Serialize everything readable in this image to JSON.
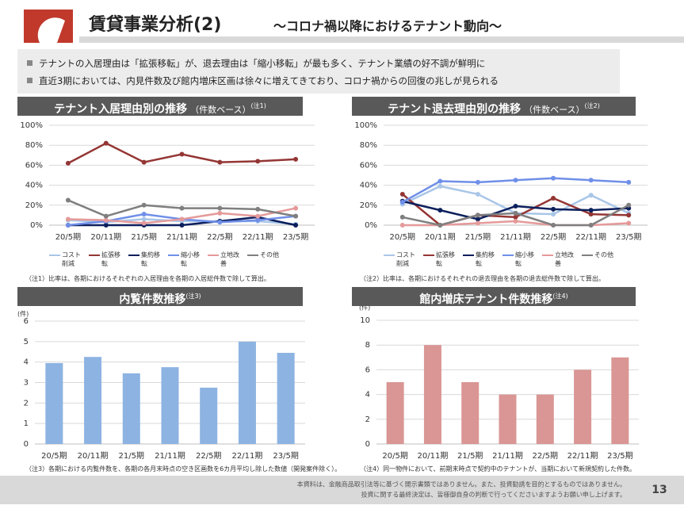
{
  "header": {
    "title": "賃貸事業分析(2)",
    "subtitle": "～コロナ禍以降におけるテナント動向～"
  },
  "bullets": [
    "テナントの入居理由は「拡張移転」が、退去理由は「縮小移転」が最も多く、テナント業績の好不調が鮮明に",
    "直近3期においては、内見件数及び館内増床区画は徐々に増えてきており、コロナ禍からの回復の兆しが見られる"
  ],
  "chart_data": [
    {
      "type": "line",
      "title": "テナント入居理由別の推移",
      "subtitle": "（件数ベース）",
      "note_mark": "(注1)",
      "categories": [
        "20/5期",
        "20/11期",
        "21/5期",
        "21/11期",
        "22/5期",
        "22/11期",
        "23/5期"
      ],
      "series": [
        {
          "name": "コスト削減",
          "color": "#a9c6e8",
          "values": [
            5,
            3,
            6,
            4,
            4,
            4,
            1
          ]
        },
        {
          "name": "拡張移転",
          "color": "#943634",
          "values": [
            62,
            82,
            63,
            71,
            63,
            64,
            66
          ]
        },
        {
          "name": "集約移転",
          "color": "#0b1f5c",
          "values": [
            0,
            0,
            0,
            0,
            4,
            8,
            0
          ]
        },
        {
          "name": "縮小移転",
          "color": "#6f8fe8",
          "values": [
            0,
            4,
            11,
            6,
            3,
            5,
            9
          ]
        },
        {
          "name": "立地改善",
          "color": "#e59a9a",
          "values": [
            6,
            5,
            2,
            6,
            12,
            9,
            17
          ]
        },
        {
          "name": "その他",
          "color": "#7f7f7f",
          "values": [
            25,
            9,
            20,
            17,
            17,
            16,
            9
          ]
        }
      ],
      "ylim": [
        0,
        100
      ],
      "yticks": [
        {
          "value": 0,
          "label": "0%"
        },
        {
          "value": 20,
          "label": "20%"
        },
        {
          "value": 40,
          "label": "40%"
        },
        {
          "value": 60,
          "label": "60%"
        },
        {
          "value": 80,
          "label": "80%"
        },
        {
          "value": 100,
          "label": "100%"
        }
      ],
      "grid": true,
      "footnote": "（注1）比率は、各期におけるそれぞれの入居理由を各期の入居総件数で除して算出。"
    },
    {
      "type": "line",
      "title": "テナント退去理由別の推移",
      "subtitle": "（件数ベース）",
      "note_mark": "(注2)",
      "categories": [
        "20/5期",
        "20/11期",
        "21/5期",
        "21/11期",
        "22/5期",
        "22/11期",
        "23/5期"
      ],
      "series": [
        {
          "name": "コスト削減",
          "color": "#a9c6e8",
          "values": [
            21,
            39,
            31,
            12,
            11,
            30,
            12
          ]
        },
        {
          "name": "拡張移転",
          "color": "#943634",
          "values": [
            31,
            0,
            10,
            8,
            27,
            11,
            10
          ]
        },
        {
          "name": "集約移転",
          "color": "#0b1f5c",
          "values": [
            24,
            15,
            6,
            19,
            16,
            15,
            17
          ]
        },
        {
          "name": "縮小移転",
          "color": "#6f8fe8",
          "values": [
            23,
            44,
            43,
            45,
            47,
            45,
            43
          ]
        },
        {
          "name": "立地改善",
          "color": "#e59a9a",
          "values": [
            0,
            0,
            2,
            4,
            0,
            0,
            2
          ]
        },
        {
          "name": "その他",
          "color": "#7f7f7f",
          "values": [
            8,
            0,
            10,
            12,
            0,
            0,
            20
          ]
        }
      ],
      "ylim": [
        0,
        100
      ],
      "yticks": [
        {
          "value": 0,
          "label": "0%"
        },
        {
          "value": 20,
          "label": "20%"
        },
        {
          "value": 40,
          "label": "40%"
        },
        {
          "value": 60,
          "label": "60%"
        },
        {
          "value": 80,
          "label": "80%"
        },
        {
          "value": 100,
          "label": "100%"
        }
      ],
      "grid": true,
      "footnote": "（注2）比率は、各期におけるそれぞれの退去理由を各期の退去総件数で除して算出。"
    },
    {
      "type": "bar",
      "title": "内覧件数推移",
      "note_mark": "(注3)",
      "unit": "(件)",
      "categories": [
        "20/5期",
        "20/11期",
        "21/5期",
        "21/11期",
        "22/5期",
        "22/11期",
        "23/5期"
      ],
      "values": [
        3.95,
        4.25,
        3.45,
        3.75,
        2.75,
        5.0,
        4.45
      ],
      "color": "#8db3e2",
      "ylim": [
        0,
        6
      ],
      "yticks": [
        0,
        1,
        2,
        3,
        4,
        5,
        6
      ],
      "grid": true,
      "footnote": "（注3）各期における内覧件数を、各期の各月末時点の空き区画数を6カ月平均し除した数値（開発案件除く）。"
    },
    {
      "type": "bar",
      "title": "館内増床テナント件数推移",
      "note_mark": "(注4)",
      "unit": "(件)",
      "categories": [
        "20/5期",
        "20/11期",
        "21/5期",
        "21/11期",
        "22/5期",
        "22/11期",
        "23/5期"
      ],
      "values": [
        5,
        8,
        5,
        4,
        4,
        6,
        7
      ],
      "color": "#d99694",
      "ylim": [
        0,
        10
      ],
      "yticks": [
        0,
        2,
        4,
        6,
        8,
        10
      ],
      "grid": true,
      "footnote": "（注4）同一物件において、前期末時点で契約中のテナントが、当期において新規契約した件数。"
    }
  ],
  "footer": {
    "lines": [
      "本資料は、金融商品取引法等に基づく開示書類ではありません。また、投資勧誘を目的とするものではありません。",
      "投資に関する最終決定は、皆様御自身の判断で行ってくださいますようお願い申し上げます。"
    ],
    "page": "13"
  }
}
